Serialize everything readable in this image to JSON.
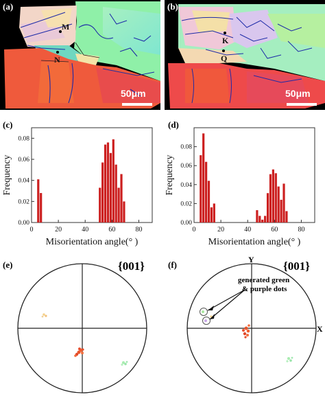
{
  "panels": {
    "a": {
      "label": "(a)",
      "points": [
        "M",
        "N"
      ],
      "scale": "50μm"
    },
    "b": {
      "label": "(b)",
      "points": [
        "K",
        "Q"
      ],
      "scale": "50μm"
    },
    "c": {
      "label": "(c)"
    },
    "d": {
      "label": "(d)"
    },
    "e": {
      "label": "(e)",
      "pole": "{001}"
    },
    "f": {
      "label": "(f)",
      "pole": "{001}",
      "axis_y": "Y",
      "axis_x": "X",
      "annotation_line1": "generated green",
      "annotation_line2": "& purple dots"
    }
  },
  "colors": {
    "bar": "#cc1f1f",
    "axis": "#333333"
  },
  "chart_data": [
    {
      "type": "bar",
      "panel": "c",
      "xlabel": "Misorientation angle(° )",
      "ylabel": "Frequency",
      "xlim": [
        0,
        90
      ],
      "ylim": [
        0,
        0.09
      ],
      "xticks": [
        "0",
        "20",
        "40",
        "60",
        "80"
      ],
      "yticks": [
        "0.00",
        "0.02",
        "0.04",
        "0.06",
        "0.08"
      ],
      "x": [
        5,
        7,
        51,
        53,
        55,
        57,
        59,
        61,
        63,
        65,
        67,
        69
      ],
      "values": [
        0.041,
        0.028,
        0.033,
        0.057,
        0.074,
        0.076,
        0.066,
        0.079,
        0.055,
        0.033,
        0.046,
        0.02
      ]
    },
    {
      "type": "bar",
      "panel": "d",
      "xlabel": "Misorientation angle(° )",
      "ylabel": "Frequency",
      "xlim": [
        0,
        90
      ],
      "ylim": [
        0,
        0.1
      ],
      "xticks": [
        "0",
        "20",
        "40",
        "60",
        "80"
      ],
      "yticks": [
        "0.00",
        "0.02",
        "0.04",
        "0.06",
        "0.08"
      ],
      "x": [
        5,
        7,
        9,
        11,
        13,
        15,
        47,
        49,
        51,
        53,
        55,
        57,
        59,
        61,
        63,
        65,
        67,
        69
      ],
      "values": [
        0.071,
        0.094,
        0.064,
        0.044,
        0.016,
        0.02,
        0.013,
        0.007,
        0.003,
        0.007,
        0.031,
        0.051,
        0.056,
        0.052,
        0.038,
        0.024,
        0.041,
        0.012
      ]
    }
  ]
}
